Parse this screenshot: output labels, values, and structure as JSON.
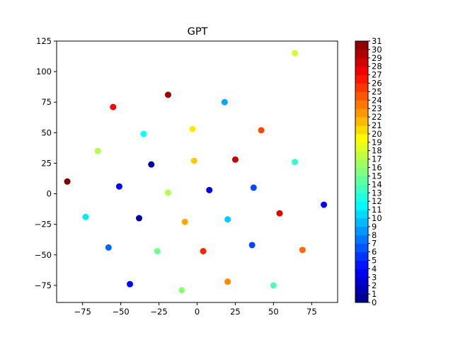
{
  "chart_data": {
    "type": "scatter",
    "title": "GPT",
    "xlabel": "",
    "ylabel": "",
    "xlim": [
      -92,
      92
    ],
    "ylim": [
      -89,
      125
    ],
    "xticks": [
      -75,
      -50,
      -25,
      0,
      25,
      50,
      75
    ],
    "yticks": [
      -75,
      -50,
      -25,
      0,
      25,
      50,
      75,
      100,
      125
    ],
    "grid": false,
    "colormap": "jet",
    "colorbar": {
      "min": 0,
      "max": 31,
      "ticks": [
        0,
        1,
        2,
        3,
        4,
        5,
        6,
        7,
        8,
        9,
        10,
        11,
        12,
        13,
        14,
        15,
        16,
        17,
        18,
        19,
        20,
        21,
        22,
        23,
        24,
        25,
        26,
        27,
        28,
        29,
        30,
        31
      ]
    },
    "points": [
      {
        "x": 64,
        "y": 115,
        "c": 18
      },
      {
        "x": -19,
        "y": 81,
        "c": 30
      },
      {
        "x": -55,
        "y": 71,
        "c": 27
      },
      {
        "x": 18,
        "y": 75,
        "c": 9
      },
      {
        "x": -35,
        "y": 49,
        "c": 12
      },
      {
        "x": -3,
        "y": 53,
        "c": 20
      },
      {
        "x": 42,
        "y": 52,
        "c": 25
      },
      {
        "x": -65,
        "y": 35,
        "c": 17
      },
      {
        "x": -2,
        "y": 27,
        "c": 21
      },
      {
        "x": 25,
        "y": 28,
        "c": 29
      },
      {
        "x": 64,
        "y": 26,
        "c": 13
      },
      {
        "x": -30,
        "y": 24,
        "c": 1
      },
      {
        "x": -85,
        "y": 10,
        "c": 31
      },
      {
        "x": -51,
        "y": 6,
        "c": 4
      },
      {
        "x": -19,
        "y": 1,
        "c": 17
      },
      {
        "x": 8,
        "y": 3,
        "c": 3
      },
      {
        "x": 37,
        "y": 5,
        "c": 6
      },
      {
        "x": 83,
        "y": -9,
        "c": 4
      },
      {
        "x": 54,
        "y": -16,
        "c": 28
      },
      {
        "x": -73,
        "y": -19,
        "c": 11
      },
      {
        "x": -38,
        "y": -20,
        "c": 1
      },
      {
        "x": -8,
        "y": -23,
        "c": 22
      },
      {
        "x": 20,
        "y": -21,
        "c": 10
      },
      {
        "x": -58,
        "y": -44,
        "c": 7
      },
      {
        "x": -26,
        "y": -47,
        "c": 15
      },
      {
        "x": 4,
        "y": -47,
        "c": 26
      },
      {
        "x": 36,
        "y": -42,
        "c": 6
      },
      {
        "x": 69,
        "y": -46,
        "c": 24
      },
      {
        "x": -44,
        "y": -74,
        "c": 4
      },
      {
        "x": -10,
        "y": -79,
        "c": 16
      },
      {
        "x": 20,
        "y": -72,
        "c": 23
      },
      {
        "x": 50,
        "y": -75,
        "c": 14
      }
    ]
  }
}
